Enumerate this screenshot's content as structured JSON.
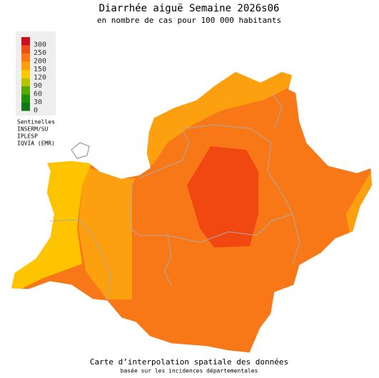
{
  "title": "Diarrhée aiguë Semaine 2026s06",
  "subtitle": "en nombre de cas pour 100 000 habitants",
  "legend": [
    {
      "value": 300,
      "color": "#c8101e"
    },
    {
      "value": 250,
      "color": "#f05018"
    },
    {
      "value": 200,
      "color": "#f87818"
    },
    {
      "value": 150,
      "color": "#fca010"
    },
    {
      "value": 120,
      "color": "#ffc800"
    },
    {
      "value": 90,
      "color": "#b8c400"
    },
    {
      "value": 60,
      "color": "#58a800"
    },
    {
      "value": 30,
      "color": "#209000"
    },
    {
      "value": 0,
      "color": "#107818"
    }
  ],
  "sources": [
    "Sentinelles",
    "INSERM/SU",
    "IPLESP",
    "IQVIA (EMR)"
  ],
  "footer": {
    "title": "Carte d’interpolation spatiale des données",
    "subtitle": "basée sur les incidences départementales"
  }
}
